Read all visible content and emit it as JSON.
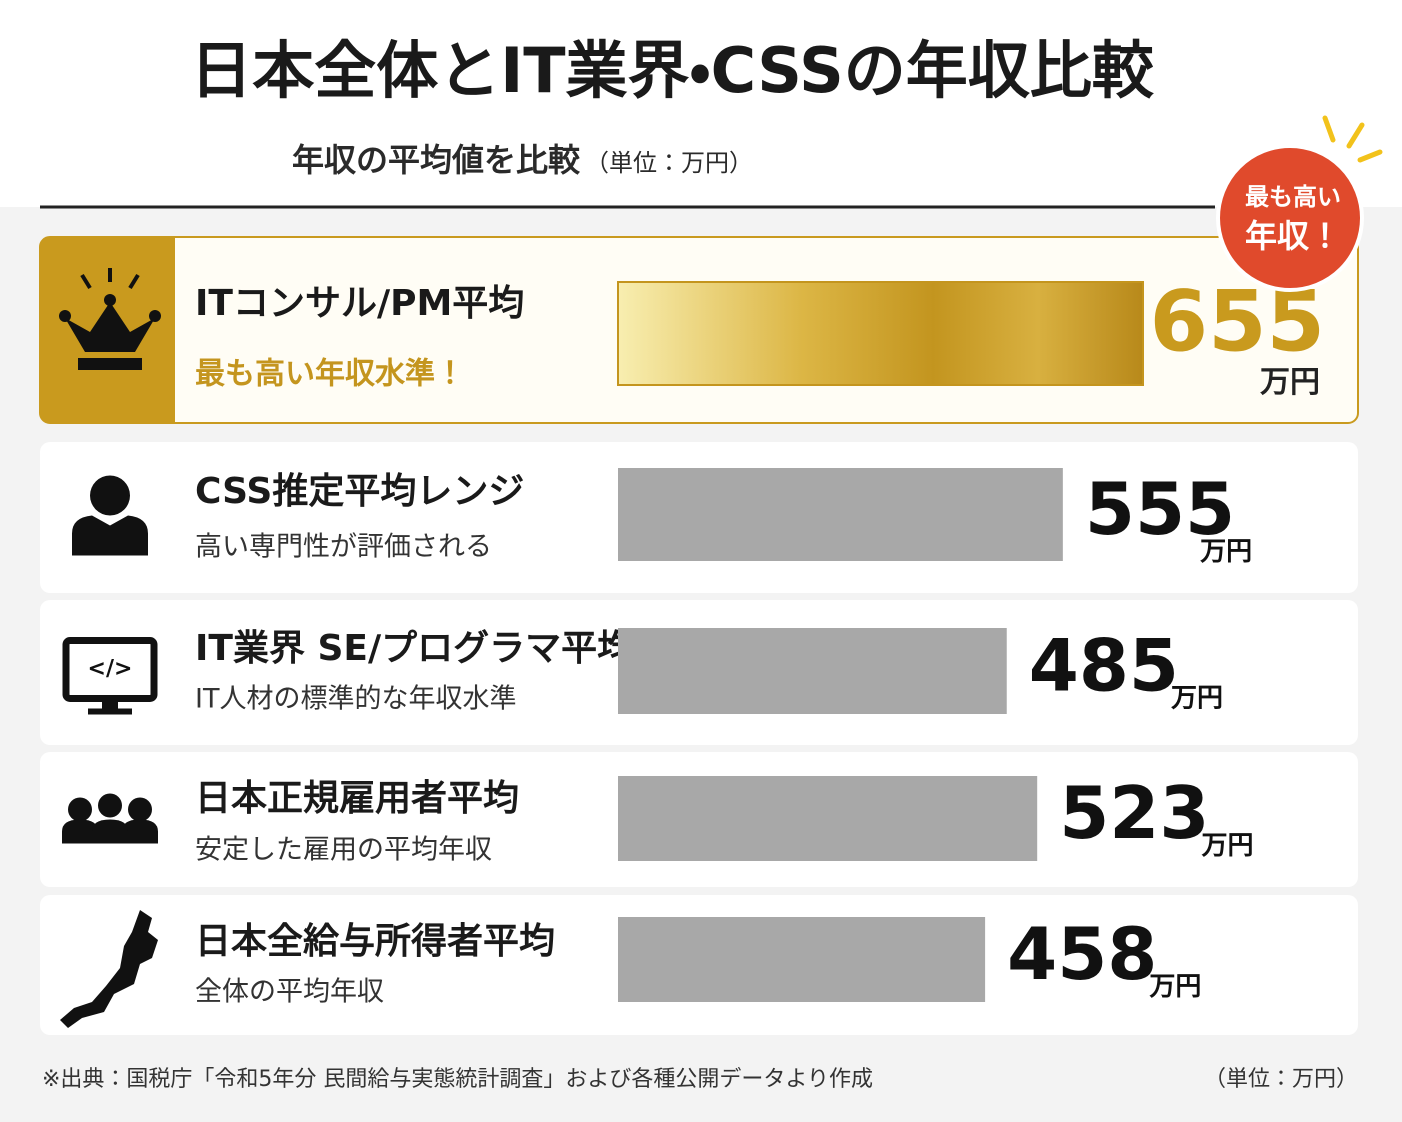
{
  "chart_data": {
    "type": "bar",
    "title": "日本全体とIT業界・CSSの年収比較",
    "subtitle": "年収の平均値を比較",
    "subtitle_unit": "（単位：万円）",
    "badge": [
      "最も高い",
      "年収！"
    ],
    "categories": [
      "ITコンサル/PM平均",
      "CSS推定平均レンジ",
      "IT業界 SE/プログラマ平均",
      "日本正規雇用者平均",
      "日本全給与所得者平均"
    ],
    "descriptions": [
      "最も高い年収水準！",
      "高い専門性が評価される",
      "IT人材の標準的な年収水準",
      "安定した雇用の平均年収",
      "全体の平均年収"
    ],
    "values": [
      655,
      555,
      485,
      523,
      458
    ],
    "unit": "万円",
    "colors": [
      "#c99a1e",
      "#a8a8a8",
      "#a8a8a8",
      "#a8a8a8",
      "#a8a8a8"
    ],
    "source": "※出典：国税庁「令和5年分 民間給与実態統計調査」および各種公開データより作成",
    "footer_unit": "（単位：万円）"
  }
}
